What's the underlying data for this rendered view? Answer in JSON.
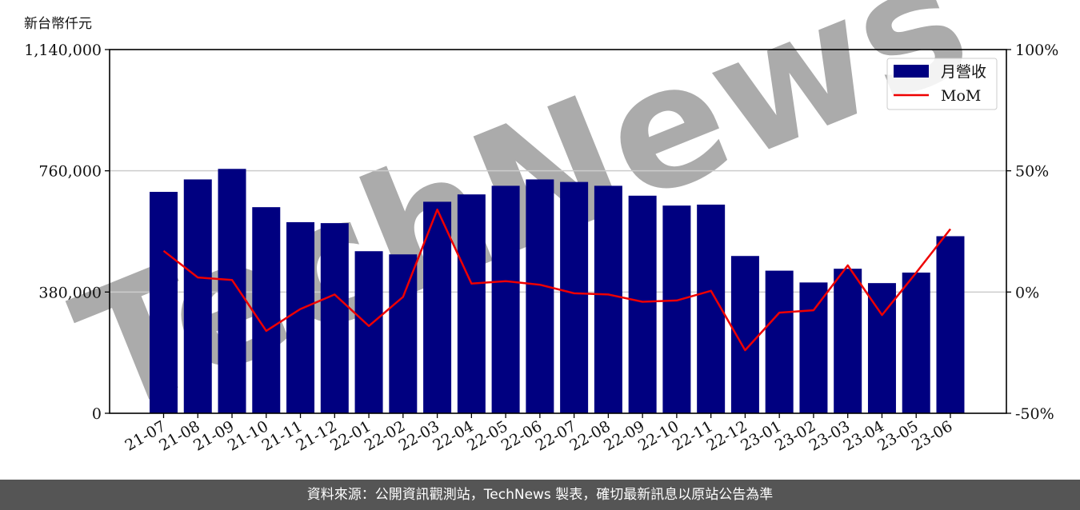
{
  "unit_label": "新台幣仟元",
  "footer_text": "資料來源：公開資訊觀測站，TechNews 製表，確切最新訊息以原站公告為準",
  "watermark": "TechNews",
  "colors": {
    "bar": "#000080",
    "line": "#ee0000",
    "grid": "#cccccc",
    "footer_bg": "#555555",
    "watermark": "#f2b8b8"
  },
  "chart_data": {
    "type": "bar",
    "categories": [
      "21-07",
      "21-08",
      "21-09",
      "21-10",
      "21-11",
      "21-12",
      "22-01",
      "22-02",
      "22-03",
      "22-04",
      "22-05",
      "22-06",
      "22-07",
      "22-08",
      "22-09",
      "22-10",
      "22-11",
      "22-12",
      "23-01",
      "23-02",
      "23-03",
      "23-04",
      "23-05",
      "23-06"
    ],
    "series": [
      {
        "name": "月營收",
        "type": "bar",
        "axis": "left",
        "values": [
          694000,
          733000,
          766000,
          646000,
          599000,
          596000,
          508000,
          498000,
          663000,
          686000,
          713000,
          733000,
          725000,
          713000,
          682000,
          651000,
          654000,
          493000,
          447000,
          410000,
          453000,
          408000,
          441000,
          555000
        ]
      },
      {
        "name": "MoM",
        "type": "line",
        "axis": "right",
        "unit": "%",
        "values": [
          17,
          6,
          5,
          -16,
          -7,
          -1,
          -14,
          -2,
          34,
          3.5,
          4.5,
          3,
          -0.5,
          -1,
          -4,
          -3.5,
          0.5,
          -24,
          -8.5,
          -7.5,
          11,
          -9.5,
          8,
          26
        ]
      }
    ],
    "y_left": {
      "ticks": [
        0,
        380000,
        760000,
        1140000
      ],
      "tick_labels": [
        "0",
        "380,000",
        "760,000",
        "1,140,000"
      ],
      "lim": [
        0,
        1140000
      ]
    },
    "y_right": {
      "ticks": [
        -50,
        0,
        50,
        100
      ],
      "tick_labels": [
        "-50%",
        "0%",
        "50%",
        "100%"
      ],
      "lim": [
        -50,
        100
      ]
    },
    "grid": "horizontal",
    "legend_position": "top-right"
  }
}
